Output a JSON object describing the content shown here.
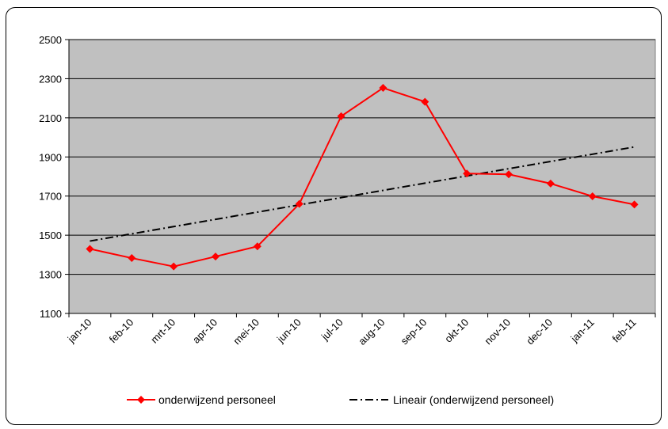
{
  "chart_data": {
    "type": "line",
    "categories": [
      "jan-10",
      "feb-10",
      "mrt-10",
      "apr-10",
      "mei-10",
      "jun-10",
      "jul-10",
      "aug-10",
      "sep-10",
      "okt-10",
      "nov-10",
      "dec-10",
      "jan-11",
      "feb-11"
    ],
    "series": [
      {
        "name": "onderwijzend personeel",
        "color": "#ff0000",
        "marker": "diamond",
        "values": [
          1430,
          1383,
          1340,
          1391,
          1443,
          1660,
          2108,
          2253,
          2182,
          1815,
          1811,
          1764,
          1699,
          1657
        ]
      },
      {
        "name": "Lineair (onderwijzend personeel)",
        "color": "#000000",
        "style": "dash-dot",
        "values": [
          1470,
          1507,
          1544,
          1581,
          1618,
          1655,
          1692,
          1729,
          1766,
          1803,
          1840,
          1877,
          1914,
          1951
        ]
      }
    ],
    "ylim": [
      1100,
      2500
    ],
    "yticks": [
      1100,
      1300,
      1500,
      1700,
      1900,
      2100,
      2300,
      2500
    ],
    "grid": true,
    "legend_position": "bottom",
    "plot_background": "#c0c0c0"
  }
}
